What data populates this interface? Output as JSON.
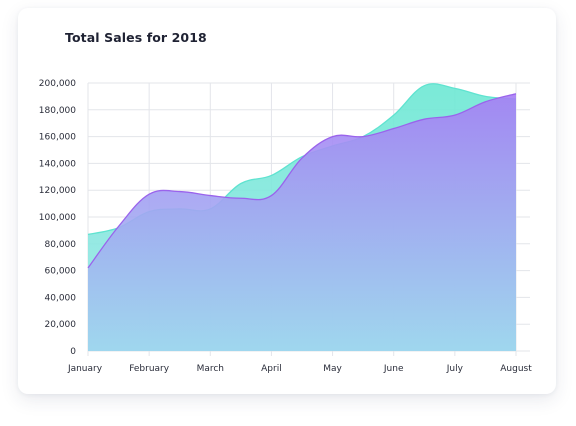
{
  "card": {
    "title": "Total Sales for 2018"
  },
  "chart_data": {
    "type": "area",
    "title": "Total Sales for 2018",
    "xlabel": "",
    "ylabel": "",
    "categories": [
      "January",
      "February",
      "March",
      "April",
      "May",
      "June",
      "July",
      "August"
    ],
    "ylim": [
      0,
      200000
    ],
    "yticks": [
      0,
      20000,
      40000,
      60000,
      80000,
      100000,
      120000,
      140000,
      160000,
      180000,
      200000
    ],
    "ytick_labels": [
      "0",
      "20,000",
      "40,000",
      "60,000",
      "80,000",
      "100,000",
      "120,000",
      "140,000",
      "160,000",
      "180,000",
      "200,000"
    ],
    "grid": true,
    "legend": "none",
    "series": [
      {
        "color": "#5fe3d0",
        "x": [
          0,
          0.5,
          1,
          1.5,
          2,
          2.5,
          3,
          3.5,
          4,
          4.5,
          5,
          5.5,
          6,
          6.5,
          7
        ],
        "values": [
          87000,
          92000,
          104000,
          106000,
          106000,
          125000,
          131000,
          145000,
          153000,
          160000,
          176000,
          198000,
          196000,
          190000,
          188000
        ]
      },
      {
        "color": "#b07cf5",
        "x": [
          0,
          0.5,
          1,
          1.5,
          2,
          2.5,
          3,
          3.5,
          4,
          4.5,
          5,
          5.5,
          6,
          6.5,
          7
        ],
        "values": [
          62000,
          93000,
          117000,
          119000,
          116000,
          114000,
          116000,
          144000,
          160000,
          160000,
          166000,
          173000,
          176000,
          186000,
          192000
        ]
      }
    ]
  }
}
